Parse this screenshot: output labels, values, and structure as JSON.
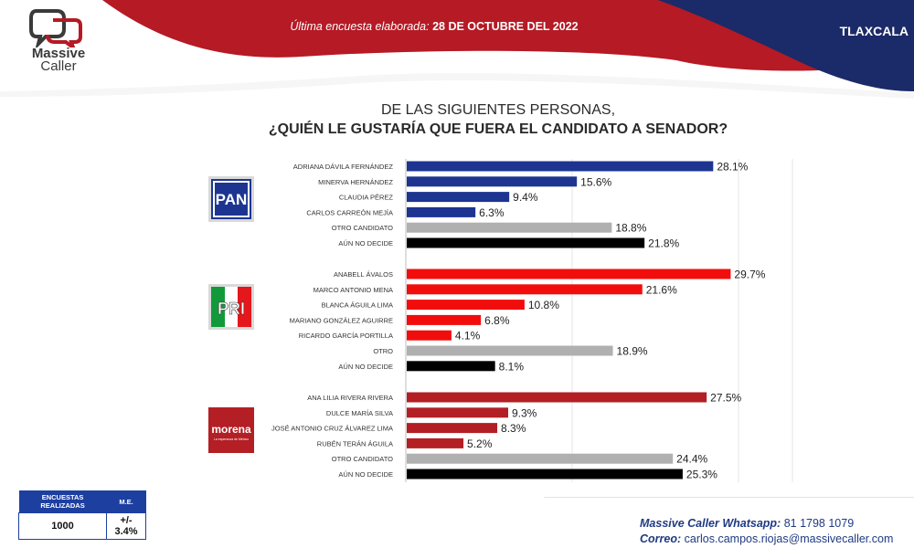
{
  "header": {
    "logo_line1": "Massive",
    "logo_line2": "Caller",
    "survey_label": "Última encuesta elaborada:",
    "survey_date": "28 DE OCTUBRE DEL 2022",
    "region": "TLAXCALA"
  },
  "question": {
    "line1": "DE LAS SIGUIENTES PERSONAS,",
    "line2": "¿QUIÉN LE GUSTARÍA QUE FUERA EL CANDIDATO  A SENADOR?"
  },
  "colors": {
    "pan": "#1d3591",
    "pri": "#e3171c",
    "morena": "#b31f24",
    "otro": "#b0b0b0",
    "no_decide": "#000000"
  },
  "chart_data": {
    "type": "bar",
    "orientation": "horizontal",
    "value_format": "percent",
    "xlim": [
      0,
      30
    ],
    "groups": [
      {
        "party": "PAN",
        "logo_text": "PAN",
        "bars": [
          {
            "label": "ADRIANA DÁVILA FERNÁNDEZ",
            "value": 28.1,
            "color": "#1d3591"
          },
          {
            "label": "MINERVA HERNÁNDEZ",
            "value": 15.6,
            "color": "#1d3591"
          },
          {
            "label": "CLAUDIA PÉREZ",
            "value": 9.4,
            "color": "#1d3591"
          },
          {
            "label": "CARLOS CARREÓN MEJÍA",
            "value": 6.3,
            "color": "#1d3591"
          },
          {
            "label": "OTRO CANDIDATO",
            "value": 18.8,
            "color": "#b0b0b0"
          },
          {
            "label": "AÚN NO DECIDE",
            "value": 21.8,
            "color": "#000000"
          }
        ]
      },
      {
        "party": "PRI",
        "logo_text": "PRI",
        "bars": [
          {
            "label": "ANABELL ÁVALOS",
            "value": 29.7,
            "color": "#f20d0d"
          },
          {
            "label": "MARCO ANTONIO MENA",
            "value": 21.6,
            "color": "#f20d0d"
          },
          {
            "label": "BLANCA ÁGUILA LIMA",
            "value": 10.8,
            "color": "#f20d0d"
          },
          {
            "label": "MARIANO GONZÁLEZ AGUIRRE",
            "value": 6.8,
            "color": "#f20d0d"
          },
          {
            "label": "RICARDO GARCÍA PORTILLA",
            "value": 4.1,
            "color": "#f20d0d"
          },
          {
            "label": "OTRO",
            "value": 18.9,
            "color": "#b0b0b0"
          },
          {
            "label": "AÚN NO DECIDE",
            "value": 8.1,
            "color": "#000000"
          }
        ]
      },
      {
        "party": "morena",
        "logo_text": "morena",
        "logo_subtext": "La esperanza de México",
        "bars": [
          {
            "label": "ANA LILIA RIVERA RIVERA",
            "value": 27.5,
            "color": "#b31f24"
          },
          {
            "label": "DULCE MARÍA SILVA",
            "value": 9.3,
            "color": "#b31f24"
          },
          {
            "label": "JOSÉ ANTONIO CRUZ ÁLVAREZ LIMA",
            "value": 8.3,
            "color": "#b31f24"
          },
          {
            "label": "RUBÉN TERÁN ÁGUILA",
            "value": 5.2,
            "color": "#b31f24"
          },
          {
            "label": "OTRO CANDIDATO",
            "value": 24.4,
            "color": "#b0b0b0"
          },
          {
            "label": "AÚN NO DECIDE",
            "value": 25.3,
            "color": "#000000"
          }
        ]
      }
    ]
  },
  "stats": {
    "col1_header": "ENCUESTAS REALIZADAS",
    "col2_header": "M.E.",
    "col1_value": "1000",
    "col2_value": "+/- 3.4%"
  },
  "footer": {
    "whatsapp_label": "Massive Caller Whatsapp:",
    "whatsapp_number": "81 1798 1079",
    "email_label": "Correo:",
    "email": "carlos.campos.riojas@massivecaller.com"
  }
}
